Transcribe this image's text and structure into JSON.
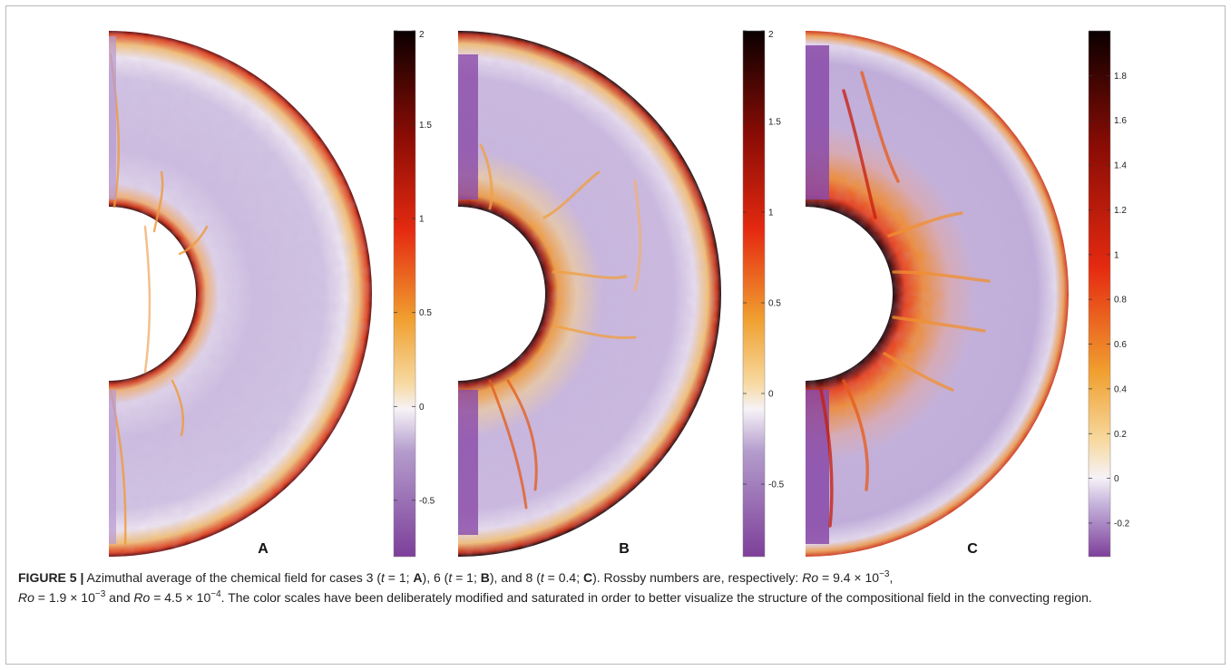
{
  "figure": {
    "panels": [
      {
        "letter": "A",
        "colorbar": {
          "min": -0.8,
          "max": 2,
          "ticks": [
            "2",
            "1.5",
            "1",
            "0.5",
            "0",
            "-0.5"
          ],
          "tick_values": [
            2,
            1.5,
            1,
            0.5,
            0,
            -0.5
          ]
        }
      },
      {
        "letter": "B",
        "colorbar": {
          "min": -0.9,
          "max": 2,
          "ticks": [
            "2",
            "1.5",
            "1",
            "0.5",
            "0",
            "-0.5"
          ],
          "tick_values": [
            2,
            1.5,
            1,
            0.5,
            0,
            -0.5
          ]
        }
      },
      {
        "letter": "C",
        "colorbar": {
          "min": -0.35,
          "max": 2,
          "ticks": [
            "1.8",
            "1.6",
            "1.4",
            "1.2",
            "1",
            "0.8",
            "0.6",
            "0.4",
            "0.2",
            "0",
            "-0.2"
          ],
          "tick_values": [
            1.8,
            1.6,
            1.4,
            1.2,
            1,
            0.8,
            0.6,
            0.4,
            0.2,
            0,
            -0.2
          ]
        }
      }
    ],
    "colors": {
      "purple": "#7d3f9a",
      "lavender": "#cdbce0",
      "white": "#f6f2f7",
      "orange": "#f0a030",
      "red": "#e02a10",
      "dark_red": "#7a0a05",
      "black": "#100000"
    }
  },
  "caption": {
    "label": "FIGURE 5 |",
    "t1": " Azimuthal average of the chemical field for cases 3 (",
    "t2": "t",
    "t3": " = 1; ",
    "t4": "A",
    "t5": "), 6 (",
    "t6": "t",
    "t7": " = 1; ",
    "t8": "B",
    "t9": "), and 8 (",
    "t10": "t",
    "t11": " = 0.4; ",
    "t12": "C",
    "t13": "). Rossby numbers are, respectively: ",
    "t14": "Ro",
    "t15": " = 9.4 × 10",
    "t16": "−3",
    "t17": ",",
    "t18": "Ro",
    "t19": " = 1.9 × 10",
    "t20": "−3",
    "t21": " and ",
    "t22": "Ro",
    "t23": " = 4.5 × 10",
    "t24": "−4",
    "t25": ". The color scales have been deliberately modified and saturated in order to better visualize the structure of the compositional field in the convecting region."
  }
}
